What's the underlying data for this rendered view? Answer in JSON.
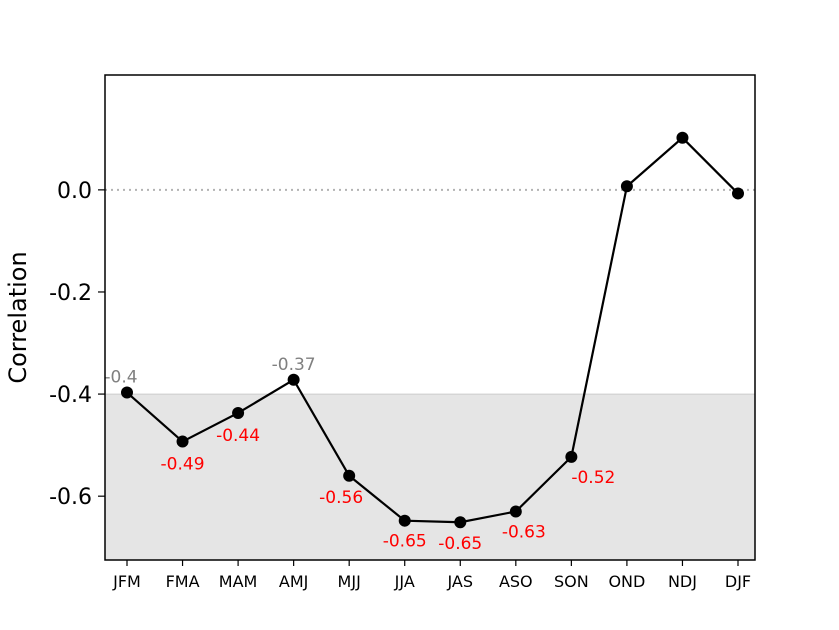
{
  "chart_data": {
    "type": "line",
    "title": "",
    "xlabel": "",
    "ylabel": "Correlation",
    "categories": [
      "JFM",
      "FMA",
      "MAM",
      "AMJ",
      "MJJ",
      "JJA",
      "JAS",
      "ASO",
      "SON",
      "OND",
      "NDJ",
      "DJF"
    ],
    "series": [
      {
        "values": [
          -0.397,
          -0.493,
          -0.437,
          -0.372,
          -0.56,
          -0.648,
          -0.651,
          -0.63,
          -0.523,
          0.007,
          0.102,
          -0.007
        ]
      }
    ],
    "data_labels": [
      "-0.4",
      "-0.49",
      "-0.44",
      "-0.37",
      "-0.56",
      "-0.65",
      "-0.65",
      "-0.63",
      "-0.52",
      "",
      "",
      ""
    ],
    "label_colors": [
      "#808080",
      "#ff0000",
      "#ff0000",
      "#808080",
      "#ff0000",
      "#ff0000",
      "#ff0000",
      "#ff0000",
      "#ff0000",
      "",
      "",
      ""
    ],
    "yticks": [
      0.0,
      -0.2,
      -0.4,
      -0.6
    ],
    "ytick_labels": [
      "0.0",
      "-0.2",
      "-0.4",
      "-0.6"
    ],
    "ylim": [
      -0.725,
      0.225
    ],
    "shaded_region": {
      "from": -0.725,
      "to": -0.4,
      "color": "#e5e5e5"
    },
    "reference_line": {
      "y": 0.0,
      "style": "dotted",
      "color": "#b3b3b3"
    },
    "line_color": "#000000",
    "marker_color": "#000000",
    "grid": false,
    "legend": "none"
  }
}
